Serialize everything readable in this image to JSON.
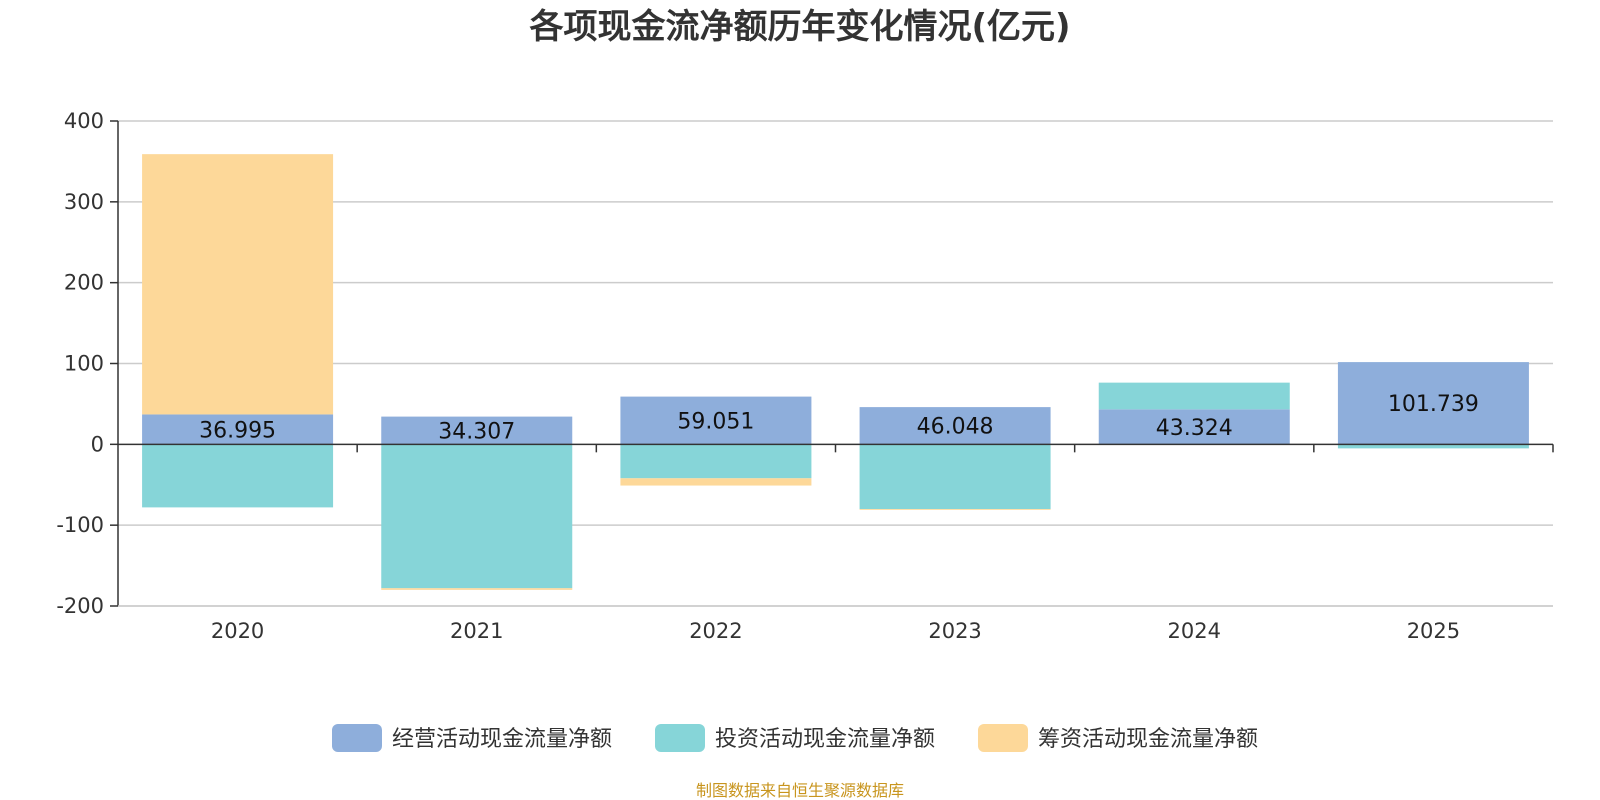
{
  "chart_data": {
    "type": "bar",
    "stacked": true,
    "title": "各项现金流净额历年变化情况(亿元)",
    "categories": [
      "2020",
      "2021",
      "2022",
      "2023",
      "2024",
      "2025"
    ],
    "ylim": [
      -200,
      400
    ],
    "yticks": [
      400,
      300,
      200,
      100,
      0,
      -100,
      -200
    ],
    "series": [
      {
        "name": "经营活动现金流量净额",
        "color": "#8eaedb",
        "values": [
          36.995,
          34.307,
          59.051,
          46.048,
          43.324,
          101.739
        ],
        "labels": [
          "36.995",
          "34.307",
          "59.051",
          "46.048",
          "43.324",
          "101.739"
        ]
      },
      {
        "name": "投资活动现金流量净额",
        "color": "#86d5d8",
        "values": [
          -78,
          -178,
          -42,
          -80,
          33,
          -5
        ]
      },
      {
        "name": "筹资活动现金流量净额",
        "color": "#fdd899",
        "values": [
          322,
          -2,
          -9,
          -1,
          0,
          0
        ]
      }
    ],
    "legend_position": "bottom",
    "grid": true
  },
  "source_text": "制图数据来自恒生聚源数据库"
}
